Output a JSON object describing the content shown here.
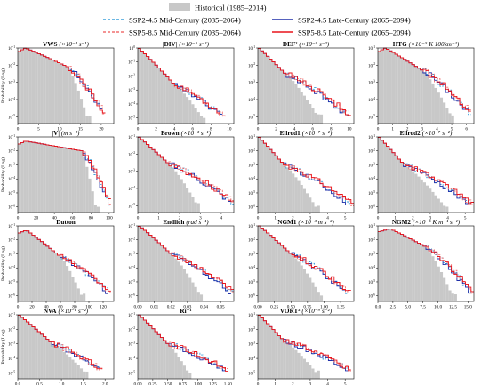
{
  "legend": [
    {
      "key": "hist",
      "label": "Historical (1985–2014)",
      "color": "#c8c8c8",
      "style": "patch"
    },
    {
      "key": "s245m",
      "label": "SSP2-4.5 Mid-Century (2035–2064)",
      "color": "#3ca0dc",
      "style": "dashed"
    },
    {
      "key": "s245l",
      "label": "SSP2-4.5 Late-Century (2065–2094)",
      "color": "#1f2fa8",
      "style": "solid"
    },
    {
      "key": "s585m",
      "label": "SSP5-8.5 Mid-Century (2035–2064)",
      "color": "#f07070",
      "style": "dashed"
    },
    {
      "key": "s585l",
      "label": "SSP5-8.5 Late-Century (2065–2094)",
      "color": "#e8141b",
      "style": "solid"
    }
  ],
  "ylabel": "Probability (Log)",
  "chart_data": [
    {
      "type": "line",
      "title_main": "VWS",
      "title_unit": "(×10⁻³ s⁻¹)",
      "xlim": [
        0,
        23
      ],
      "xticks": [
        0,
        5,
        10,
        15,
        20
      ],
      "xticklabels": [
        "0",
        "5",
        "10",
        "15",
        "20"
      ],
      "ylog": true,
      "ymin_exp": -5,
      "ymax_exp": -1,
      "yticks_exp": [
        -1,
        -2,
        -3,
        -4,
        -5
      ],
      "peak_x": 1.8,
      "peak_exp": -1.0,
      "mid_x": 12,
      "mid_exp": -2.1,
      "end_x": 20,
      "end_exp": -4.8,
      "hist_end_x": 17.5,
      "tail_spread": 0.9,
      "ylabel": true
    },
    {
      "type": "line",
      "title_main": "|DIV|",
      "title_unit": "(×10⁻⁵ s⁻¹)",
      "xlim": [
        0,
        10.5
      ],
      "xticks": [
        0,
        2,
        4,
        6,
        8,
        10
      ],
      "xticklabels": [
        "0",
        "2",
        "4",
        "6",
        "8",
        "10"
      ],
      "ylog": true,
      "ymin_exp": -5,
      "ymax_exp": 0,
      "yticks_exp": [
        0,
        -1,
        -2,
        -3,
        -4,
        -5
      ],
      "peak_x": 0.1,
      "peak_exp": 0.0,
      "mid_x": 4,
      "mid_exp": -2.6,
      "end_x": 9,
      "end_exp": -4.9,
      "hist_end_x": 7.5,
      "tail_spread": 0.5,
      "ylabel": false
    },
    {
      "type": "line",
      "title_main": "DEF²",
      "title_unit": "(×10⁻⁹ s⁻²)",
      "xlim": [
        0,
        10.5
      ],
      "xticks": [
        0,
        2,
        4,
        6,
        8,
        10
      ],
      "xticklabels": [
        "0",
        "2",
        "4",
        "6",
        "8",
        "10"
      ],
      "ylog": true,
      "ymin_exp": -5,
      "ymax_exp": -1,
      "yticks_exp": [
        -1,
        -2,
        -3,
        -4,
        -5
      ],
      "peak_x": 0.1,
      "peak_exp": -1.0,
      "mid_x": 3,
      "mid_exp": -2.5,
      "end_x": 9.5,
      "end_exp": -4.9,
      "hist_end_x": 7,
      "tail_spread": 0.6,
      "ylabel": false
    },
    {
      "type": "line",
      "title_main": "HTG",
      "title_unit": "(×10⁻⁵ K 100km⁻¹)",
      "xlim": [
        0,
        6.5
      ],
      "xticks": [
        0,
        1,
        2,
        3,
        4,
        5,
        6
      ],
      "xticklabels": [
        "0",
        "1",
        "2",
        "3",
        "4",
        "5",
        "6"
      ],
      "ylog": true,
      "ymin_exp": -5,
      "ymax_exp": -1,
      "yticks_exp": [
        -1,
        -2,
        -3,
        -4,
        -5
      ],
      "peak_x": 0.5,
      "peak_exp": -1.0,
      "mid_x": 3,
      "mid_exp": -2.3,
      "end_x": 6,
      "end_exp": -4.8,
      "hist_end_x": 5.2,
      "tail_spread": 0.4,
      "ylabel": false
    },
    {
      "type": "line",
      "title_main": "|V|",
      "title_unit": "(m s⁻¹)",
      "xlim": [
        0,
        105
      ],
      "xticks": [
        0,
        20,
        40,
        60,
        80,
        100
      ],
      "xticklabels": [
        "0",
        "20",
        "40",
        "60",
        "80",
        "100"
      ],
      "ylog": true,
      "ymin_exp": -6,
      "ymax_exp": -1,
      "yticks_exp": [
        -1,
        -2,
        -3,
        -4,
        -5,
        -6
      ],
      "peak_x": 8,
      "peak_exp": -1.3,
      "mid_x": 70,
      "mid_exp": -2.0,
      "end_x": 98,
      "end_exp": -5.8,
      "hist_end_x": 90,
      "tail_spread": 4,
      "ylabel": true
    },
    {
      "type": "line",
      "title_main": "Brown",
      "title_unit": "(×10⁻³ s⁻¹)",
      "xlim": [
        0,
        4.6
      ],
      "xticks": [
        0,
        1,
        2,
        3,
        4
      ],
      "xticklabels": [
        "0",
        "1",
        "2",
        "3",
        "4"
      ],
      "ylog": true,
      "ymin_exp": -5,
      "ymax_exp": -1,
      "yticks_exp": [
        -1,
        -2,
        -3,
        -4,
        -5
      ],
      "peak_x": 0.05,
      "peak_exp": -1.0,
      "mid_x": 1.5,
      "mid_exp": -2.6,
      "end_x": 4.3,
      "end_exp": -4.8,
      "hist_end_x": 3,
      "tail_spread": 0.4,
      "ylabel": false
    },
    {
      "type": "line",
      "title_main": "Ellrod1",
      "title_unit": "(×10⁻⁷ s⁻²)",
      "xlim": [
        0,
        5.5
      ],
      "xticks": [
        0,
        1,
        2,
        3,
        4,
        5
      ],
      "xticklabels": [
        "0",
        "1",
        "2",
        "3",
        "4",
        "5"
      ],
      "ylog": true,
      "ymin_exp": -6,
      "ymax_exp": -1,
      "yticks_exp": [
        -1,
        -2,
        -3,
        -4,
        -5,
        -6
      ],
      "peak_x": 0.05,
      "peak_exp": -1.0,
      "mid_x": 1.5,
      "mid_exp": -3.0,
      "end_x": 5,
      "end_exp": -5.8,
      "hist_end_x": 3.5,
      "tail_spread": 0.5,
      "ylabel": false
    },
    {
      "type": "line",
      "title_main": "Ellrod2",
      "title_unit": "(×10⁻⁷ s⁻²)",
      "xlim": [
        0,
        5.5
      ],
      "xticks": [
        0,
        1,
        2,
        3,
        4,
        5
      ],
      "xticklabels": [
        "0",
        "1",
        "2",
        "3",
        "4",
        "5"
      ],
      "ylog": true,
      "ymin_exp": -6,
      "ymax_exp": -1,
      "yticks_exp": [
        -1,
        -2,
        -3,
        -4,
        -5,
        -6
      ],
      "peak_x": 0.05,
      "peak_exp": -1.0,
      "mid_x": 1.5,
      "mid_exp": -3.0,
      "end_x": 5,
      "end_exp": -5.8,
      "hist_end_x": 4,
      "tail_spread": 0.5,
      "ylabel": false
    },
    {
      "type": "line",
      "title_main": "Dutton",
      "title_unit": "",
      "xlim": [
        0,
        135
      ],
      "xticks": [
        0,
        20,
        40,
        60,
        80,
        100,
        120
      ],
      "xticklabels": [
        "0",
        "20",
        "40",
        "60",
        "80",
        "100",
        "120"
      ],
      "ylog": true,
      "ymin_exp": -6,
      "ymax_exp": -1,
      "yticks_exp": [
        -1,
        -2,
        -3,
        -4,
        -5,
        -6
      ],
      "peak_x": 12,
      "peak_exp": -1.3,
      "mid_x": 60,
      "mid_exp": -3.2,
      "end_x": 125,
      "end_exp": -5.8,
      "hist_end_x": 95,
      "tail_spread": 8,
      "ylabel": true
    },
    {
      "type": "line",
      "title_main": "Endlich",
      "title_unit": "(rad s⁻¹)",
      "xlim": [
        0,
        0.058
      ],
      "xticks": [
        0,
        0.01,
        0.02,
        0.03,
        0.04,
        0.05
      ],
      "xticklabels": [
        "0.00",
        "0.01",
        "0.02",
        "0.03",
        "0.04",
        "0.05"
      ],
      "ylog": true,
      "ymin_exp": -6,
      "ymax_exp": -1,
      "yticks_exp": [
        -1,
        -2,
        -3,
        -4,
        -5,
        -6
      ],
      "peak_x": 0.001,
      "peak_exp": -1.0,
      "mid_x": 0.02,
      "mid_exp": -3.0,
      "end_x": 0.055,
      "end_exp": -5.8,
      "hist_end_x": 0.04,
      "tail_spread": 0.004,
      "ylabel": false
    },
    {
      "type": "line",
      "title_main": "NGM1",
      "title_unit": "(×10⁻³ m s⁻²)",
      "xlim": [
        0,
        1.45
      ],
      "xticks": [
        0,
        0.25,
        0.5,
        0.75,
        1,
        1.25
      ],
      "xticklabels": [
        "0.00",
        "0.25",
        "0.50",
        "0.75",
        "1.00",
        "1.25"
      ],
      "ylog": true,
      "ymin_exp": -6,
      "ymax_exp": -1,
      "yticks_exp": [
        -1,
        -2,
        -3,
        -4,
        -5,
        -6
      ],
      "peak_x": 0.02,
      "peak_exp": -1.0,
      "mid_x": 0.5,
      "mid_exp": -3.0,
      "end_x": 1.3,
      "end_exp": -5.8,
      "hist_end_x": 1.0,
      "tail_spread": 0.1,
      "ylabel": false
    },
    {
      "type": "line",
      "title_main": "NGM2",
      "title_unit": "(×10⁻⁵ K m⁻¹ s⁻¹)",
      "xlim": [
        0,
        16
      ],
      "xticks": [
        0,
        2.5,
        5,
        7.5,
        10,
        12.5,
        15
      ],
      "xticklabels": [
        "0.0",
        "2.5",
        "5.0",
        "7.5",
        "10.0",
        "12.5",
        "15.0"
      ],
      "ylog": true,
      "ymin_exp": -6,
      "ymax_exp": -1,
      "yticks_exp": [
        -1,
        -2,
        -3,
        -4,
        -5,
        -6
      ],
      "peak_x": 2,
      "peak_exp": -1.2,
      "mid_x": 8,
      "mid_exp": -2.5,
      "end_x": 15,
      "end_exp": -5.8,
      "hist_end_x": 13,
      "tail_spread": 1,
      "ylabel": false
    },
    {
      "type": "line",
      "title_main": "NVA",
      "title_unit": "(×10⁻⁸ s⁻²)",
      "xlim": [
        0,
        2.2
      ],
      "xticks": [
        0,
        0.5,
        1,
        1.5,
        2
      ],
      "xticklabels": [
        "0.0",
        "0.5",
        "1.0",
        "1.5",
        "2.0"
      ],
      "ylog": true,
      "ymin_exp": -5,
      "ymax_exp": -1,
      "yticks_exp": [
        -1,
        -2,
        -3,
        -4,
        -5
      ],
      "peak_x": 0.02,
      "peak_exp": -1.0,
      "mid_x": 0.8,
      "mid_exp": -3.0,
      "end_x": 1.8,
      "end_exp": -4.8,
      "hist_end_x": 1.6,
      "tail_spread": 0.15,
      "ylabel": true
    },
    {
      "type": "line",
      "title_main": "Ri⁻¹",
      "title_unit": "",
      "xlim": [
        0,
        1.6
      ],
      "xticks": [
        0,
        0.25,
        0.5,
        0.75,
        1,
        1.25,
        1.5
      ],
      "xticklabels": [
        "0.00",
        "0.25",
        "0.50",
        "0.75",
        "1.00",
        "1.25",
        "1.50"
      ],
      "ylog": true,
      "ymin_exp": -5,
      "ymax_exp": -1,
      "yticks_exp": [
        -1,
        -2,
        -3,
        -4,
        -5
      ],
      "peak_x": 0.02,
      "peak_exp": -1.0,
      "mid_x": 0.5,
      "mid_exp": -3.0,
      "end_x": 1.4,
      "end_exp": -4.8,
      "hist_end_x": 0.9,
      "tail_spread": 0.12,
      "ylabel": false
    },
    {
      "type": "line",
      "title_main": "VORT²",
      "title_unit": "(×10⁻⁹ s⁻²)",
      "xlim": [
        0,
        5.5
      ],
      "xticks": [
        0,
        1,
        2,
        3,
        4,
        5
      ],
      "xticklabels": [
        "0",
        "1",
        "2",
        "3",
        "4",
        "5"
      ],
      "ylog": true,
      "ymin_exp": -5,
      "ymax_exp": -1,
      "yticks_exp": [
        -1,
        -2,
        -3,
        -4,
        -5
      ],
      "peak_x": 0.05,
      "peak_exp": -1.0,
      "mid_x": 1.5,
      "mid_exp": -2.8,
      "end_x": 5,
      "end_exp": -4.8,
      "hist_end_x": 3.5,
      "tail_spread": 0.4,
      "ylabel": false
    }
  ]
}
